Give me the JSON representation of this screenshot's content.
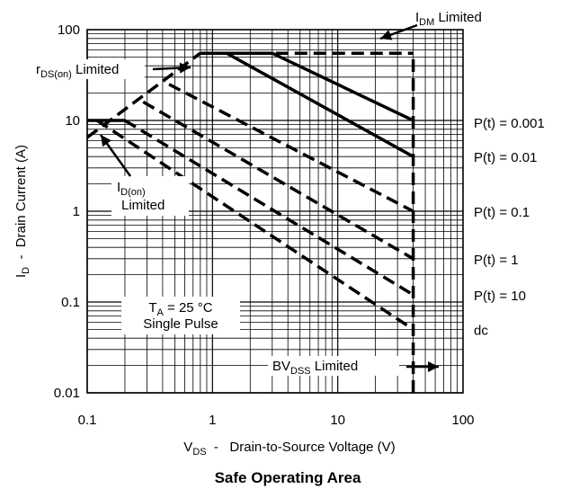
{
  "chart_data": {
    "type": "line",
    "title": "Safe Operating Area",
    "xlabel": {
      "main": "V",
      "sub": "DS",
      "rest": "  -   Drain-to-Source Voltage (V)"
    },
    "ylabel": {
      "main": "I",
      "sub": "D",
      "rest": "  -  Drain Current (A)"
    },
    "xscale": "log",
    "yscale": "log",
    "xlim": [
      0.1,
      100
    ],
    "ylim": [
      0.01,
      100
    ],
    "grid": true,
    "x_tick_labels": [
      {
        "v": 0.1,
        "label": "0.1"
      },
      {
        "v": 1,
        "label": "1"
      },
      {
        "v": 10,
        "label": "10"
      },
      {
        "v": 100,
        "label": "100"
      }
    ],
    "y_tick_labels": [
      {
        "v": 100,
        "label": "100"
      },
      {
        "v": 10,
        "label": "10"
      },
      {
        "v": 1,
        "label": "1"
      },
      {
        "v": 0.1,
        "label": "0.1"
      },
      {
        "v": 0.01,
        "label": "0.01"
      }
    ],
    "series": [
      {
        "name": "P(t) = 0.001",
        "style": "solid",
        "points": [
          [
            0.85,
            55
          ],
          [
            3,
            55
          ],
          [
            40,
            10
          ]
        ]
      },
      {
        "name": "P(t) = 0.01",
        "style": "solid",
        "points": [
          [
            0.85,
            55
          ],
          [
            1.3,
            55
          ],
          [
            40,
            4
          ]
        ]
      },
      {
        "name": "P(t) = 0.1",
        "style": "dashed",
        "points": [
          [
            0.45,
            25
          ],
          [
            40,
            1
          ]
        ]
      },
      {
        "name": "P(t) = 1",
        "style": "dashed",
        "points": [
          [
            0.28,
            16
          ],
          [
            40,
            0.3
          ]
        ]
      },
      {
        "name": "P(t) = 10",
        "style": "dashed",
        "points": [
          [
            0.2,
            10
          ],
          [
            40,
            0.12
          ]
        ]
      },
      {
        "name": "dc",
        "style": "dashed",
        "points": [
          [
            0.12,
            10
          ],
          [
            40,
            0.05
          ]
        ]
      },
      {
        "name": "IDM Limited",
        "style": "dashed",
        "points": [
          [
            0.8,
            55
          ],
          [
            40,
            55
          ]
        ]
      },
      {
        "name": "rDS(on) Limited",
        "style": "dashed",
        "points": [
          [
            0.1,
            6.5
          ],
          [
            0.8,
            55
          ]
        ]
      },
      {
        "name": "ID(on) Limited",
        "style": "solid",
        "points": [
          [
            0.1,
            10
          ],
          [
            0.2,
            10
          ]
        ]
      },
      {
        "name": "BVDSS Limited",
        "style": "dashed",
        "points": [
          [
            40,
            0.01
          ],
          [
            40,
            55
          ]
        ]
      }
    ],
    "pt_labels": [
      {
        "text": "P(t) = 0.001",
        "v": 9.5
      },
      {
        "text": "P(t) = 0.01",
        "v": 4.0
      },
      {
        "text": "P(t) = 0.1",
        "v": 1.0
      },
      {
        "text": "P(t) = 1",
        "v": 0.3
      },
      {
        "text": "P(t) = 10",
        "v": 0.12
      },
      {
        "text": "dc",
        "v": 0.05
      }
    ],
    "annotations": {
      "idm": {
        "main": "I",
        "sub": "DM",
        "rest": " Limited"
      },
      "rds": {
        "main": "r",
        "sub": "DS(on)",
        "rest": " Limited"
      },
      "idon": {
        "main": "I",
        "sub": "D(on)",
        "line2": "Limited"
      },
      "ta": {
        "main": "T",
        "sub": "A",
        "rest": " = 25 °C",
        "line2": "Single Pulse"
      },
      "bvdss": {
        "main": "BV",
        "sub": "DSS",
        "rest": " Limited"
      }
    }
  }
}
